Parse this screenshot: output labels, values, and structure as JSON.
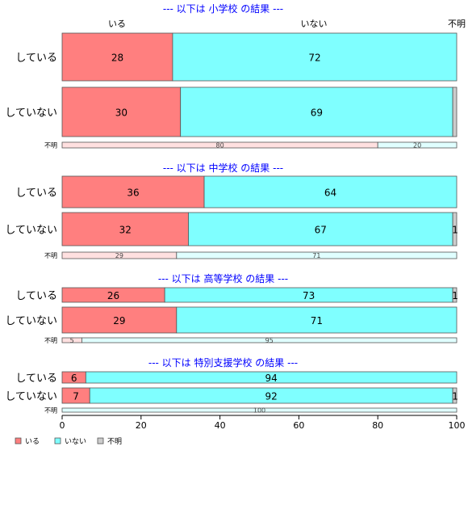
{
  "chart_data": {
    "type": "bar",
    "orientation": "horizontal",
    "stacked": true,
    "xlim": [
      0,
      100
    ],
    "x_ticks": [
      0,
      20,
      40,
      60,
      80,
      100
    ],
    "grid": false,
    "legend_position": "bottom-left",
    "top_column_labels": [
      "いる",
      "いない",
      "不明"
    ],
    "legend": [
      {
        "name": "いる",
        "color": "#FF7F7F"
      },
      {
        "name": "いない",
        "color": "#7FFFFF"
      },
      {
        "name": "不明",
        "color": "#CCCCCC"
      }
    ],
    "panels": [
      {
        "title": "--- 以下は 小学校 の結果 ---",
        "rows": [
          {
            "label": "している",
            "values": [
              28,
              72,
              0
            ],
            "labels": [
              "28",
              "72",
              ""
            ],
            "small": false
          },
          {
            "label": "していない",
            "values": [
              30,
              69,
              1
            ],
            "labels": [
              "30",
              "69",
              ""
            ],
            "small": false
          },
          {
            "label": "不明",
            "values": [
              80,
              20,
              0
            ],
            "labels": [
              "80",
              "20",
              ""
            ],
            "small": true
          }
        ]
      },
      {
        "title": "--- 以下は 中学校 の結果 ---",
        "rows": [
          {
            "label": "している",
            "values": [
              36,
              64,
              0
            ],
            "labels": [
              "36",
              "64",
              ""
            ],
            "small": false
          },
          {
            "label": "していない",
            "values": [
              32,
              67,
              1
            ],
            "labels": [
              "32",
              "67",
              "1"
            ],
            "small": false
          },
          {
            "label": "不明",
            "values": [
              29,
              71,
              0
            ],
            "labels": [
              "29",
              "71",
              ""
            ],
            "small": true
          }
        ]
      },
      {
        "title": "--- 以下は 高等学校 の結果 ---",
        "rows": [
          {
            "label": "している",
            "values": [
              26,
              73,
              1
            ],
            "labels": [
              "26",
              "73",
              "1"
            ],
            "small": false
          },
          {
            "label": "していない",
            "values": [
              29,
              71,
              0
            ],
            "labels": [
              "29",
              "71",
              ""
            ],
            "small": false
          },
          {
            "label": "不明",
            "values": [
              5,
              95,
              0
            ],
            "labels": [
              "5",
              "95",
              ""
            ],
            "small": true
          }
        ]
      },
      {
        "title": "--- 以下は 特別支援学校 の結果 ---",
        "rows": [
          {
            "label": "している",
            "values": [
              6,
              94,
              0
            ],
            "labels": [
              "6",
              "94",
              ""
            ],
            "small": false
          },
          {
            "label": "していない",
            "values": [
              7,
              92,
              1
            ],
            "labels": [
              "7",
              "92",
              "1"
            ],
            "small": false
          },
          {
            "label": "不明",
            "values": [
              0,
              100,
              0
            ],
            "labels": [
              "",
              "100",
              ""
            ],
            "small": true
          }
        ]
      }
    ]
  }
}
